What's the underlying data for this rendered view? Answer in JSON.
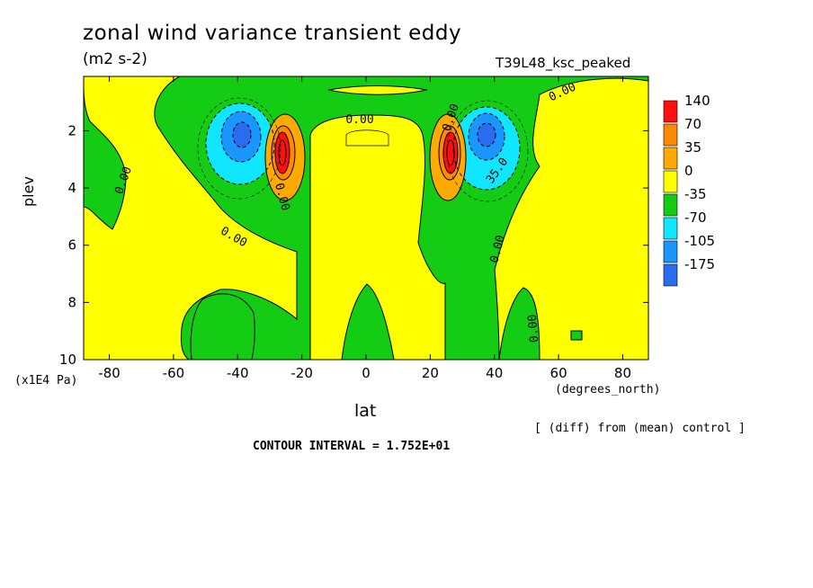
{
  "header": {
    "title": "zonal wind variance transient eddy",
    "units": "(m2 s-2)",
    "run": "T39L48_ksc_peaked"
  },
  "footer": {
    "y_units": "(x1E4 Pa)",
    "x_units": "(degrees_north)",
    "diff_note": "[ (diff) from (mean) control ]",
    "contour_interval": "CONTOUR INTERVAL = 1.752E+01"
  },
  "colors": {
    "neg4": "#2a6cf0",
    "neg3": "#1a96ff",
    "neg2": "#10e6ff",
    "neg1": "#14cc14",
    "pos1": "#ffff00",
    "pos2": "#ffaa00",
    "pos3": "#ff8a00",
    "pos4": "#ff1010"
  },
  "chart_data": {
    "type": "heatmap",
    "title": "zonal wind variance transient eddy",
    "xlabel": "lat",
    "ylabel": "plev",
    "x_ticks": [
      -80,
      -60,
      -40,
      -20,
      0,
      20,
      40,
      60,
      80
    ],
    "y_ticks": [
      2,
      4,
      6,
      8,
      10
    ],
    "xlim": [
      -88,
      88
    ],
    "ylim": [
      0.1,
      10
    ],
    "y_inverted": true,
    "legend_levels": [
      "140",
      "70",
      "35",
      "0",
      "-35",
      "-70",
      "-105",
      "-175"
    ],
    "legend_placement": "right",
    "contour_labels": [
      "0.00",
      "0.00",
      "0.00",
      "0.00",
      "0.00",
      "0.00",
      "0.00",
      "0.00",
      "35.0",
      "0.00",
      "0.00"
    ],
    "features": [
      {
        "lat": -36,
        "plev": 2.5,
        "sign": "negative",
        "peak": -150
      },
      {
        "lat": -27,
        "plev": 3.0,
        "sign": "positive",
        "peak": 140
      },
      {
        "lat": 26,
        "plev": 3.0,
        "sign": "positive",
        "peak": 140
      },
      {
        "lat": 38,
        "plev": 2.5,
        "sign": "negative",
        "peak": -150
      }
    ]
  }
}
